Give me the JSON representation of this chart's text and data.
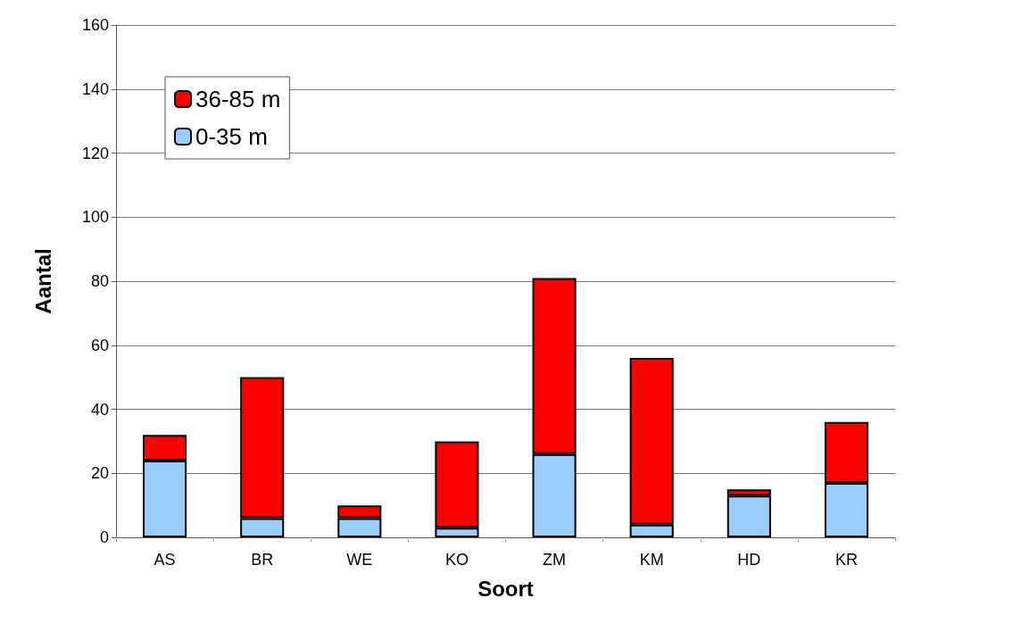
{
  "chart_data": {
    "type": "bar",
    "stacked": true,
    "xlabel": "Soort",
    "ylabel": "Aantal",
    "categories": [
      "AS",
      "BR",
      "WE",
      "KO",
      "ZM",
      "KM",
      "HD",
      "KR"
    ],
    "series": [
      {
        "name": "0-35 m",
        "color": "#99ccff",
        "values": [
          24,
          6,
          6,
          3,
          26,
          4,
          13,
          17
        ]
      },
      {
        "name": "36-85 m",
        "color": "#ff0000",
        "values": [
          8,
          44,
          4,
          27,
          55,
          52,
          2,
          19
        ]
      }
    ],
    "ylim": [
      0,
      160
    ],
    "yticks": [
      0,
      20,
      40,
      60,
      80,
      100,
      120,
      140,
      160
    ],
    "grid": "y",
    "legend": "top left"
  }
}
